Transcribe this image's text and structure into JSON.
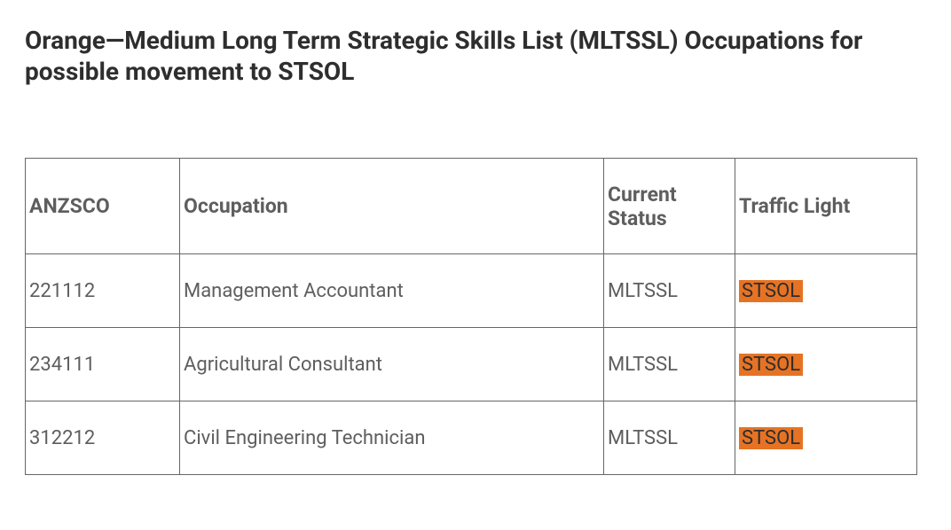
{
  "title": "Orange—Medium Long Term Strategic Skills List (MLTSSL) Occupations for possible movement to STSOL",
  "columns": {
    "anzsco": "ANZSCO",
    "occupation": "Occupation",
    "status": "Current Status",
    "traffic": "Traffic Light"
  },
  "rows": [
    {
      "anzsco": "221112",
      "occupation": "Management Accountant",
      "status": "MLTSSL",
      "traffic": "STSOL"
    },
    {
      "anzsco": "234111",
      "occupation": "Agricultural Consultant",
      "status": "MLTSSL",
      "traffic": "STSOL"
    },
    {
      "anzsco": "312212",
      "occupation": "Civil Engineering Technician",
      "status": "MLTSSL",
      "traffic": "STSOL"
    }
  ],
  "style": {
    "traffic_badge_bg": "#e67324",
    "text_color": "#5e5e5e",
    "title_color": "#2e2e2e",
    "border_color": "#666666",
    "background_color": "#ffffff"
  }
}
